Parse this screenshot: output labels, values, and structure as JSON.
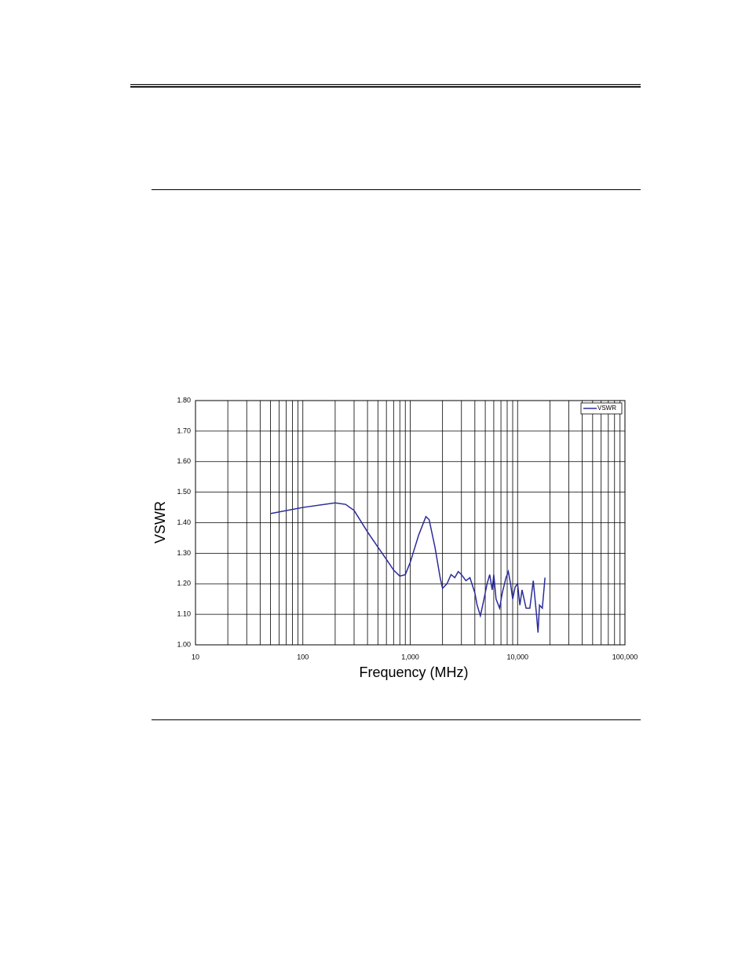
{
  "chart_data": {
    "type": "line",
    "x_label": "Frequency (MHz)",
    "y_label": "VSWR",
    "xlog": true,
    "xlim": [
      10,
      100000
    ],
    "xticks": [
      10,
      100,
      {
        "value": 1000,
        "label": "1,000"
      },
      {
        "value": 10000,
        "label": "10,000"
      },
      {
        "value": 100000,
        "label": "100,000"
      }
    ],
    "ylim": [
      1.0,
      1.8
    ],
    "yticks": [
      {
        "value": 1.0,
        "label": "1.00"
      },
      {
        "value": 1.1,
        "label": "1.10"
      },
      {
        "value": 1.2,
        "label": "1.20"
      },
      {
        "value": 1.3,
        "label": "1.30"
      },
      {
        "value": 1.4,
        "label": "1.40"
      },
      {
        "value": 1.5,
        "label": "1.50"
      },
      {
        "value": 1.6,
        "label": "1.60"
      },
      {
        "value": 1.7,
        "label": "1.70"
      },
      {
        "value": 1.8,
        "label": "1.80"
      }
    ],
    "grid": true,
    "minor_grid": true,
    "legend": "upper right",
    "x": [
      50,
      100,
      200,
      250,
      300,
      400,
      500,
      600,
      700,
      800,
      900,
      1000,
      1200,
      1400,
      1500,
      1700,
      1900,
      2000,
      2200,
      2400,
      2600,
      2800,
      3000,
      3300,
      3600,
      4000,
      4200,
      4500,
      4800,
      5200,
      5500,
      5800,
      6000,
      6300,
      6800,
      7200,
      7800,
      8200,
      8600,
      9000,
      9500,
      10000,
      10500,
      11000,
      12000,
      13000,
      14000,
      15000,
      15500,
      16000,
      17000,
      18000
    ],
    "series": [
      {
        "name": "VSWR",
        "color": "#2b2b9a",
        "values": [
          1.43,
          1.45,
          1.465,
          1.46,
          1.44,
          1.37,
          1.32,
          1.28,
          1.245,
          1.225,
          1.23,
          1.27,
          1.36,
          1.42,
          1.41,
          1.32,
          1.22,
          1.185,
          1.2,
          1.23,
          1.22,
          1.24,
          1.23,
          1.21,
          1.22,
          1.17,
          1.13,
          1.095,
          1.14,
          1.2,
          1.23,
          1.18,
          1.23,
          1.15,
          1.12,
          1.17,
          1.22,
          1.24,
          1.2,
          1.15,
          1.19,
          1.2,
          1.13,
          1.18,
          1.12,
          1.12,
          1.21,
          1.1,
          1.04,
          1.13,
          1.12,
          1.22
        ]
      }
    ]
  }
}
